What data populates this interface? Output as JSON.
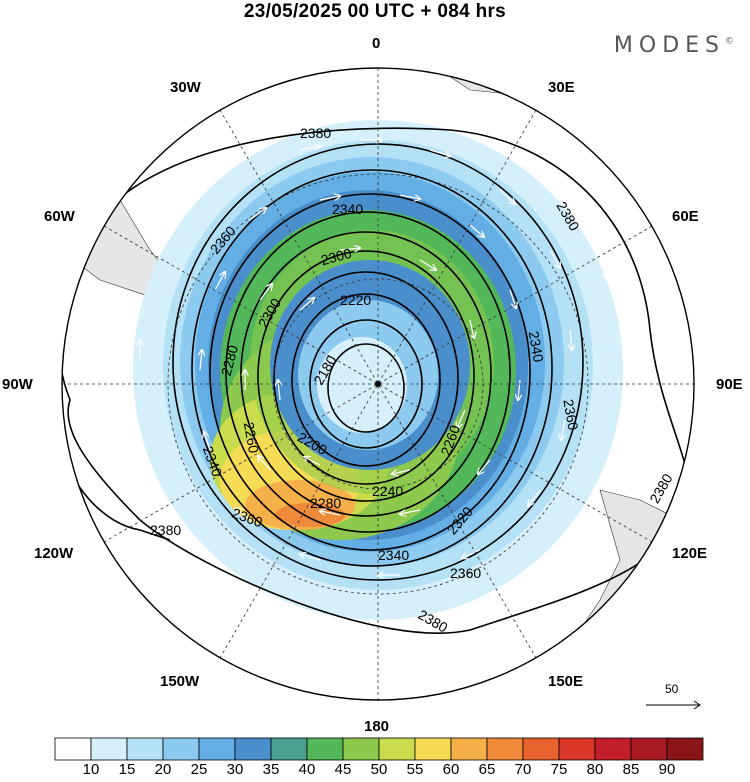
{
  "title": "23/05/2025  00 UTC  + 084 hrs",
  "logo": "MODES",
  "logo_mark": "©",
  "longitude_labels": {
    "lon_0": "0",
    "lon_30e": "30E",
    "lon_60e": "60E",
    "lon_90e": "90E",
    "lon_120e": "120E",
    "lon_150e": "150E",
    "lon_180": "180",
    "lon_150w": "150W",
    "lon_120w": "120W",
    "lon_90w": "90W",
    "lon_60w": "60W",
    "lon_30w": "30W"
  },
  "contour_labels": [
    "2380",
    "2360",
    "2340",
    "2320",
    "2300",
    "2280",
    "2260",
    "2240",
    "2220",
    "2200",
    "2180"
  ],
  "contour_annotations": [
    {
      "text": "2380",
      "id": "c2380a"
    },
    {
      "text": "2380",
      "id": "c2380b"
    },
    {
      "text": "2380",
      "id": "c2380c"
    },
    {
      "text": "2380",
      "id": "c2380d"
    },
    {
      "text": "2380",
      "id": "c2380e"
    },
    {
      "text": "2360",
      "id": "c2360a"
    },
    {
      "text": "2360",
      "id": "c2360b"
    },
    {
      "text": "2360",
      "id": "c2360c"
    },
    {
      "text": "2360",
      "id": "c2360d"
    },
    {
      "text": "2340",
      "id": "c2340a"
    },
    {
      "text": "2340",
      "id": "c2340b"
    },
    {
      "text": "2340",
      "id": "c2340c"
    },
    {
      "text": "2340",
      "id": "c2340d"
    },
    {
      "text": "2320",
      "id": "c2320a"
    },
    {
      "text": "2300",
      "id": "c2300a"
    },
    {
      "text": "2300",
      "id": "c2300b"
    },
    {
      "text": "2280",
      "id": "c2280a"
    },
    {
      "text": "2280",
      "id": "c2280b"
    },
    {
      "text": "2260",
      "id": "c2260a"
    },
    {
      "text": "2260",
      "id": "c2260b"
    },
    {
      "text": "2240",
      "id": "c2240a"
    },
    {
      "text": "2220",
      "id": "c2220a"
    },
    {
      "text": "2200",
      "id": "c2200a"
    },
    {
      "text": "2180",
      "id": "c2180a"
    }
  ],
  "colorbar": {
    "ticks": [
      "10",
      "15",
      "20",
      "25",
      "30",
      "35",
      "40",
      "45",
      "50",
      "55",
      "60",
      "65",
      "70",
      "75",
      "80",
      "85",
      "90"
    ],
    "colors": [
      "#ffffff",
      "#d6f0fb",
      "#b5e1f6",
      "#8ccaef",
      "#63aee4",
      "#4a8fcc",
      "#49a08f",
      "#52b85a",
      "#8cc94c",
      "#c9dc4d",
      "#f6dc55",
      "#f6b04a",
      "#f08a3b",
      "#e8622e",
      "#d9372a",
      "#c21f2a",
      "#a81a22",
      "#8a1519"
    ]
  },
  "reference_vector": "50"
}
